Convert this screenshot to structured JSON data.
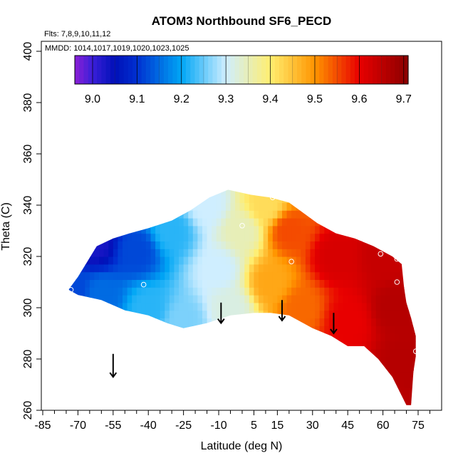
{
  "chart_data": {
    "type": "heatmap",
    "title": "ATOM3 Northbound SF6_PECD",
    "annotations": {
      "flights": "Flts: 7,8,9,10,11,12",
      "dates": "MMDD: 1014,1017,1019,1020,1023,1025"
    },
    "xlabel": "Latitude (deg N)",
    "ylabel": "Theta (C)",
    "xlim": [
      -85,
      80
    ],
    "ylim": [
      260,
      405
    ],
    "x_ticks": [
      -85,
      -70,
      -55,
      -40,
      -25,
      -10,
      5,
      15,
      30,
      45,
      60,
      75
    ],
    "y_ticks": [
      260,
      280,
      300,
      320,
      340,
      360,
      380,
      400
    ],
    "x_minor_step": 5,
    "colorbar": {
      "range": [
        8.96,
        9.71
      ],
      "ticks": [
        9.0,
        9.1,
        9.2,
        9.3,
        9.4,
        9.5,
        9.6,
        9.7
      ],
      "tick_labels": [
        "9.0",
        "9.1",
        "9.2",
        "9.3",
        "9.4",
        "9.5",
        "9.6",
        "9.7"
      ],
      "stops": [
        {
          "v": 8.96,
          "c": "#8b1fd6"
        },
        {
          "v": 9.0,
          "c": "#3a1fd8"
        },
        {
          "v": 9.05,
          "c": "#0010b8"
        },
        {
          "v": 9.1,
          "c": "#0030d0"
        },
        {
          "v": 9.2,
          "c": "#00a6f5"
        },
        {
          "v": 9.3,
          "c": "#cfeeff"
        },
        {
          "v": 9.4,
          "c": "#ffee70"
        },
        {
          "v": 9.5,
          "c": "#ff9500"
        },
        {
          "v": 9.6,
          "c": "#e80000"
        },
        {
          "v": 9.71,
          "c": "#8a0000"
        }
      ]
    },
    "field_samples": [
      {
        "lat": -72,
        "theta": 307,
        "value": 9.12
      },
      {
        "lat": -63,
        "theta": 325,
        "value": 9.03
      },
      {
        "lat": -60,
        "theta": 305,
        "value": 9.15
      },
      {
        "lat": -45,
        "theta": 322,
        "value": 9.12
      },
      {
        "lat": -40,
        "theta": 300,
        "value": 9.22
      },
      {
        "lat": -30,
        "theta": 330,
        "value": 9.22
      },
      {
        "lat": -25,
        "theta": 295,
        "value": 9.26
      },
      {
        "lat": -15,
        "theta": 340,
        "value": 9.3
      },
      {
        "lat": -10,
        "theta": 315,
        "value": 9.3
      },
      {
        "lat": -5,
        "theta": 300,
        "value": 9.32
      },
      {
        "lat": 0,
        "theta": 330,
        "value": 9.35
      },
      {
        "lat": 10,
        "theta": 340,
        "value": 9.42
      },
      {
        "lat": 12,
        "theta": 310,
        "value": 9.48
      },
      {
        "lat": 20,
        "theta": 330,
        "value": 9.55
      },
      {
        "lat": 25,
        "theta": 300,
        "value": 9.53
      },
      {
        "lat": 40,
        "theta": 320,
        "value": 9.62
      },
      {
        "lat": 45,
        "theta": 295,
        "value": 9.6
      },
      {
        "lat": 60,
        "theta": 320,
        "value": 9.64
      },
      {
        "lat": 65,
        "theta": 300,
        "value": 9.66
      },
      {
        "lat": 70,
        "theta": 280,
        "value": 9.66
      }
    ],
    "field_boundary": [
      [
        -74,
        307
      ],
      [
        -70,
        312
      ],
      [
        -66,
        318
      ],
      [
        -62,
        324
      ],
      [
        -55,
        327
      ],
      [
        -48,
        329
      ],
      [
        -40,
        331
      ],
      [
        -30,
        334
      ],
      [
        -22,
        338
      ],
      [
        -14,
        343
      ],
      [
        -6,
        346
      ],
      [
        4,
        344
      ],
      [
        12,
        343
      ],
      [
        20,
        341
      ],
      [
        26,
        337
      ],
      [
        32,
        333
      ],
      [
        40,
        329
      ],
      [
        48,
        327
      ],
      [
        56,
        324
      ],
      [
        64,
        320
      ],
      [
        68,
        317
      ],
      [
        69,
        308
      ],
      [
        70,
        302
      ],
      [
        72,
        296
      ],
      [
        74,
        289
      ],
      [
        74,
        281
      ],
      [
        73,
        275
      ],
      [
        72,
        262
      ],
      [
        70,
        262
      ],
      [
        64,
        273
      ],
      [
        58,
        280
      ],
      [
        52,
        285
      ],
      [
        45,
        285
      ],
      [
        38,
        289
      ],
      [
        30,
        292
      ],
      [
        20,
        297
      ],
      [
        12,
        298
      ],
      [
        5,
        298
      ],
      [
        -5,
        297
      ],
      [
        -15,
        294
      ],
      [
        -25,
        292
      ],
      [
        -32,
        294
      ],
      [
        -40,
        297
      ],
      [
        -50,
        299
      ],
      [
        -60,
        303
      ],
      [
        -70,
        305
      ]
    ],
    "observation_points": [
      {
        "lat": -64,
        "theta": 325
      },
      {
        "lat": -73,
        "theta": 307
      },
      {
        "lat": -42,
        "theta": 309
      },
      {
        "lat": 0,
        "theta": 332
      },
      {
        "lat": 13,
        "theta": 343
      },
      {
        "lat": 21,
        "theta": 342
      },
      {
        "lat": 21,
        "theta": 318
      },
      {
        "lat": 59,
        "theta": 321
      },
      {
        "lat": 66,
        "theta": 319
      },
      {
        "lat": 66,
        "theta": 310
      },
      {
        "lat": 74,
        "theta": 283
      }
    ],
    "arrows": [
      {
        "lat": -55,
        "theta_top": 282,
        "theta_bottom": 273
      },
      {
        "lat": -9,
        "theta_top": 302,
        "theta_bottom": 294
      },
      {
        "lat": 17,
        "theta_top": 303,
        "theta_bottom": 295
      },
      {
        "lat": 39,
        "theta_top": 298,
        "theta_bottom": 290
      }
    ]
  }
}
